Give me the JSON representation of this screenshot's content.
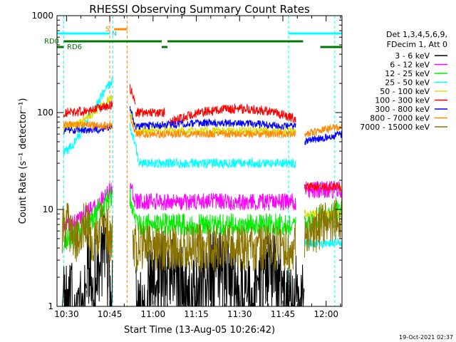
{
  "chart_data": {
    "type": "line",
    "title": "RHESSI Observing Summary Count Rates",
    "xlabel": "Start Time (13-Aug-05 10:26:42)",
    "ylabel": "Count Rate (s⁻¹ detector⁻¹)",
    "yscale": "log",
    "ylim": [
      1,
      1000
    ],
    "xlim": [
      "10:26:42",
      "12:05:30"
    ],
    "x_ticks": [
      "10:30",
      "10:45",
      "11:00",
      "11:15",
      "11:30",
      "11:45",
      "12:00"
    ],
    "y_ticks": [
      "1",
      "10",
      "100",
      "1000"
    ],
    "timestamp": "19-Oct-2021 02:37",
    "legend_position": "right",
    "legend_header": [
      "Det 1,3,4,5,6,9,",
      "FDecim 1, Att 0"
    ],
    "flag_labels": {
      "saa": "S",
      "night": "N",
      "rd0": "RD0",
      "rd6": "RD6"
    },
    "series": [
      {
        "name": "3 - 6 keV",
        "color": "#000000",
        "level": 2.2
      },
      {
        "name": "6 - 12 keV",
        "color": "#ff00ff",
        "level": 12
      },
      {
        "name": "12 - 25 keV",
        "color": "#00ee00",
        "level": 7
      },
      {
        "name": "25 - 50 keV",
        "color": "#00ffff",
        "level": 30
      },
      {
        "name": "50 - 100 keV",
        "color": "#dddd00",
        "level": 65
      },
      {
        "name": "100 - 300 keV",
        "color": "#ff0000",
        "level": 100
      },
      {
        "name": "300 - 800 keV",
        "color": "#0000ff",
        "level": 70
      },
      {
        "name": "800 - 7000 keV",
        "color": "#ff8800",
        "level": 60
      },
      {
        "name": "7000 - 15000 keV",
        "color": "#8b7500",
        "level": 4
      }
    ]
  }
}
